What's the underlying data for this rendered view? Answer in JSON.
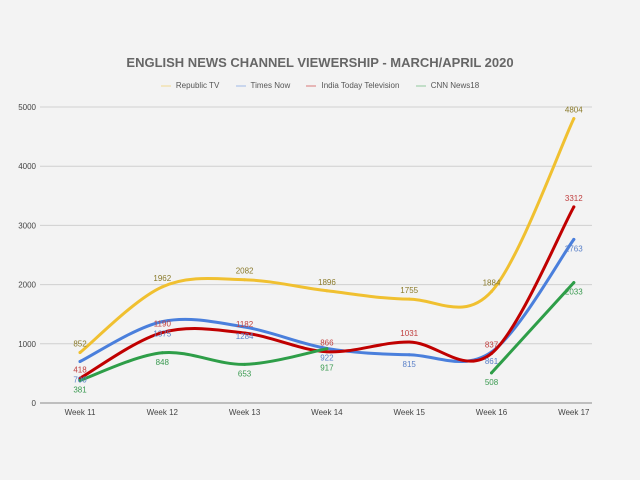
{
  "chart_data": {
    "type": "line",
    "title": "ENGLISH NEWS CHANNEL VIEWERSHIP - MARCH/APRIL 2020",
    "categories": [
      "Week 11",
      "Week 12",
      "Week 13",
      "Week 14",
      "Week 15",
      "Week 16",
      "Week 17"
    ],
    "ylim": [
      0,
      5000
    ],
    "yticks": [
      0,
      1000,
      2000,
      3000,
      4000,
      5000
    ],
    "grid": true,
    "legend": "top",
    "series": [
      {
        "name": "Republic TV",
        "color": "#f0c030",
        "label_color": "#8a7a2a",
        "values": [
          852,
          1962,
          2082,
          1896,
          1755,
          1884,
          4804
        ]
      },
      {
        "name": "Times Now",
        "color": "#4a7fdc",
        "label_color": "#5a80c8",
        "values": [
          700,
          1375,
          1284,
          922,
          815,
          861,
          2763
        ]
      },
      {
        "name": "India Today Television",
        "color": "#c00000",
        "label_color": "#c04040",
        "values": [
          418,
          1190,
          1182,
          866,
          1031,
          837,
          3312
        ]
      },
      {
        "name": "CNN News18",
        "color": "#2e9e48",
        "label_color": "#3a9a50",
        "values": [
          381,
          848,
          653,
          917,
          null,
          508,
          2033
        ]
      }
    ]
  }
}
